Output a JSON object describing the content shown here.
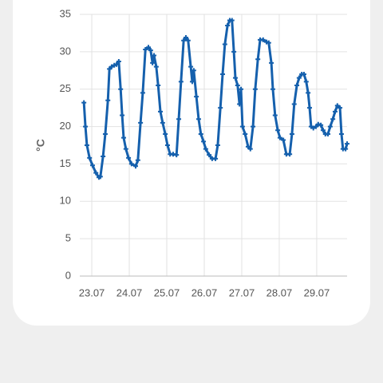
{
  "chart_data": {
    "type": "line",
    "y_label": "°C",
    "color": "#1560ad",
    "grid": true,
    "xlim": [
      22.68,
      29.81
    ],
    "xticks": [
      {
        "value": 23,
        "label": "23.07"
      },
      {
        "value": 24,
        "label": "24.07"
      },
      {
        "value": 25,
        "label": "25.07"
      },
      {
        "value": 26,
        "label": "26.07"
      },
      {
        "value": 27,
        "label": "27.07"
      },
      {
        "value": 28,
        "label": "28.07"
      },
      {
        "value": 29,
        "label": "29.07"
      }
    ],
    "ylim": [
      0,
      35
    ],
    "yticks": [
      0,
      5,
      10,
      15,
      20,
      25,
      30,
      35
    ],
    "x": [
      22.79,
      22.83,
      22.87,
      22.94,
      23.02,
      23.11,
      23.19,
      23.23,
      23.3,
      23.36,
      23.43,
      23.47,
      23.53,
      23.6,
      23.66,
      23.72,
      23.77,
      23.81,
      23.85,
      23.91,
      23.98,
      24.06,
      24.17,
      24.23,
      24.3,
      24.36,
      24.43,
      24.51,
      24.57,
      24.62,
      24.66,
      24.72,
      24.77,
      24.83,
      24.89,
      24.96,
      25.02,
      25.09,
      25.17,
      25.26,
      25.32,
      25.38,
      25.45,
      25.51,
      25.57,
      25.64,
      25.68,
      25.72,
      25.79,
      25.85,
      25.91,
      25.98,
      26.04,
      26.13,
      26.21,
      26.3,
      26.36,
      26.43,
      26.49,
      26.55,
      26.62,
      26.68,
      26.74,
      26.79,
      26.83,
      26.89,
      26.94,
      26.98,
      27.02,
      27.09,
      27.17,
      27.23,
      27.3,
      27.36,
      27.43,
      27.49,
      27.57,
      27.66,
      27.72,
      27.79,
      27.83,
      27.89,
      27.96,
      28.02,
      28.11,
      28.19,
      28.28,
      28.34,
      28.4,
      28.47,
      28.53,
      28.6,
      28.66,
      28.72,
      28.77,
      28.81,
      28.85,
      28.91,
      28.98,
      29.04,
      29.11,
      29.17,
      29.23,
      29.3,
      29.36,
      29.43,
      29.49,
      29.55,
      29.62,
      29.66,
      29.7,
      29.77,
      29.81
    ],
    "values": [
      23.2,
      20,
      17.5,
      15.8,
      14.8,
      13.8,
      13.2,
      13.3,
      16,
      19,
      23.5,
      27.7,
      28,
      28.2,
      28.3,
      28.7,
      25,
      21.5,
      18.5,
      17,
      15.8,
      15,
      14.7,
      15.5,
      20.5,
      24.5,
      30.3,
      30.6,
      30.2,
      28.5,
      29.5,
      28,
      25.5,
      22,
      20.5,
      19,
      17.5,
      16.3,
      16.3,
      16.2,
      21,
      26,
      31.5,
      31.9,
      31.5,
      28,
      26,
      27.5,
      24,
      21,
      19,
      18,
      17,
      16.2,
      15.7,
      15.7,
      17.5,
      22.5,
      27,
      31,
      33.5,
      34.2,
      34.2,
      30,
      26.5,
      25.5,
      23,
      25,
      20,
      19,
      17.3,
      17,
      20,
      25,
      29,
      31.6,
      31.6,
      31.3,
      31.2,
      28.5,
      25,
      21.5,
      19.5,
      18.5,
      18.2,
      16.3,
      16.3,
      19,
      23,
      25.5,
      26.5,
      27,
      27,
      26,
      24.5,
      22.5,
      20,
      19.8,
      20,
      20.3,
      20.2,
      19.5,
      19,
      19,
      20,
      21,
      22,
      22.8,
      22.5,
      19,
      17,
      17,
      17.7
    ]
  }
}
